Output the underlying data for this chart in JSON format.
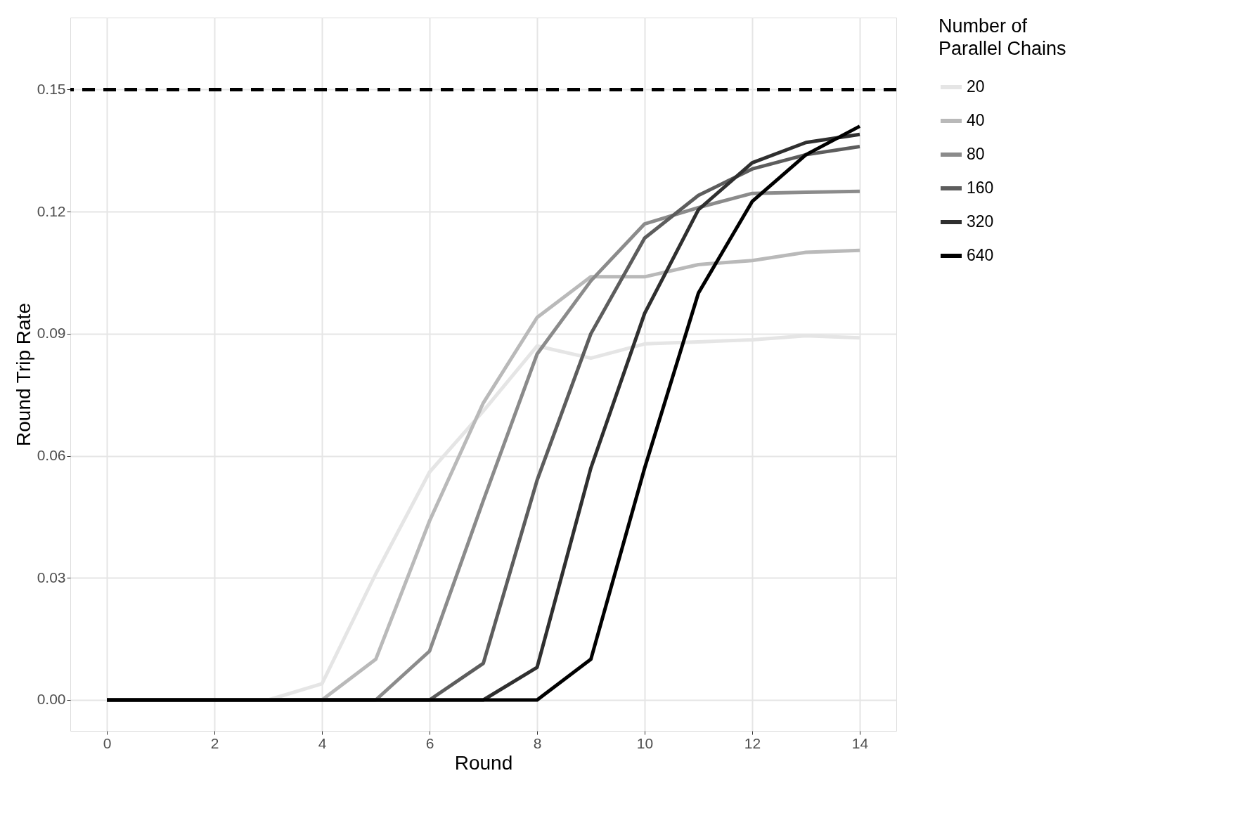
{
  "chart_data": {
    "type": "line",
    "xlabel": "Round",
    "ylabel": "Round Trip Rate",
    "legend_title": "Number of\nParallel Chains",
    "x": [
      0,
      1,
      2,
      3,
      4,
      5,
      6,
      7,
      8,
      9,
      10,
      11,
      12,
      13,
      14
    ],
    "series": [
      {
        "name": "20",
        "color": "#e5e5e5",
        "values": [
          0,
          0,
          0,
          0,
          0.004,
          0.031,
          0.056,
          0.071,
          0.087,
          0.084,
          0.0875,
          0.088,
          0.0885,
          0.0895,
          0.089
        ]
      },
      {
        "name": "40",
        "color": "#b9b9b9",
        "values": [
          0,
          0,
          0,
          0,
          0,
          0.01,
          0.044,
          0.073,
          0.094,
          0.104,
          0.104,
          0.107,
          0.108,
          0.11,
          0.1105
        ]
      },
      {
        "name": "80",
        "color": "#8b8b8b",
        "values": [
          0,
          0,
          0,
          0,
          0,
          0,
          0.012,
          0.049,
          0.085,
          0.103,
          0.117,
          0.121,
          0.1245,
          0.1248,
          0.125
        ]
      },
      {
        "name": "160",
        "color": "#5d5d5d",
        "values": [
          0,
          0,
          0,
          0,
          0,
          0,
          0,
          0.009,
          0.054,
          0.09,
          0.1135,
          0.124,
          0.1305,
          0.134,
          0.136
        ]
      },
      {
        "name": "320",
        "color": "#2f2f2f",
        "values": [
          0,
          0,
          0,
          0,
          0,
          0,
          0,
          0,
          0.008,
          0.057,
          0.095,
          0.1205,
          0.132,
          0.137,
          0.139
        ]
      },
      {
        "name": "640",
        "color": "#000000",
        "values": [
          0,
          0,
          0,
          0,
          0,
          0,
          0,
          0,
          0,
          0.01,
          0.057,
          0.1,
          0.1225,
          0.134,
          0.141
        ]
      }
    ],
    "xlim": [
      -0.68,
      14.68
    ],
    "xticks": [
      0,
      2,
      4,
      6,
      8,
      10,
      12,
      14
    ],
    "ylim": [
      -0.0076,
      0.1677
    ],
    "yticks": [
      {
        "value": 0,
        "label": "0.00"
      },
      {
        "value": 0.03,
        "label": "0.03"
      },
      {
        "value": 0.06,
        "label": "0.06"
      },
      {
        "value": 0.09,
        "label": "0.09"
      },
      {
        "value": 0.12,
        "label": "0.12"
      },
      {
        "value": 0.15,
        "label": "0.15"
      }
    ],
    "ref_lines": [
      {
        "axis": "y",
        "value": 0.15,
        "color": "#000000",
        "line_style": "dashed"
      }
    ],
    "grid": true,
    "legend": "right",
    "line_style": "solid",
    "marker": "none"
  }
}
